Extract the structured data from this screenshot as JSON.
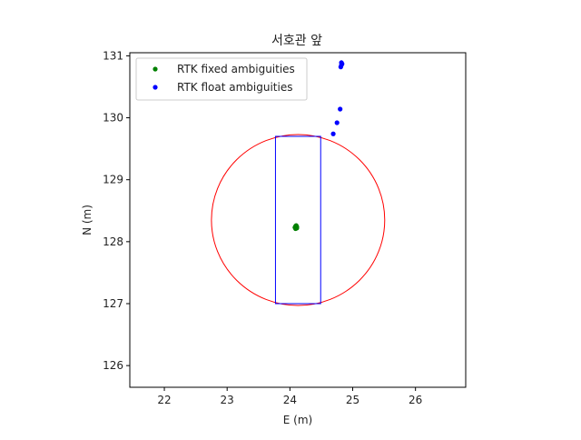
{
  "chart_data": {
    "type": "scatter",
    "title": "서호관 앞",
    "xlabel": "E (m)",
    "ylabel": "N (m)",
    "xlim": [
      21.45,
      26.8
    ],
    "ylim": [
      125.65,
      131.05
    ],
    "x_ticks": [
      22,
      23,
      24,
      25,
      26
    ],
    "y_ticks": [
      126,
      127,
      128,
      129,
      130,
      131
    ],
    "grid": false,
    "legend_position": "upper-left",
    "series": [
      {
        "name": "RTK fixed ambiguities",
        "color": "#008000",
        "points": [
          [
            24.09,
            128.25
          ],
          [
            24.1,
            128.22
          ],
          [
            24.11,
            128.24
          ],
          [
            24.08,
            128.23
          ],
          [
            24.1,
            128.26
          ],
          [
            24.09,
            128.21
          ],
          [
            24.11,
            128.22
          ],
          [
            24.1,
            128.24
          ]
        ]
      },
      {
        "name": "RTK float ambiguities",
        "color": "#0000ff",
        "points": [
          [
            24.82,
            130.89
          ],
          [
            24.83,
            130.87
          ],
          [
            24.82,
            130.85
          ],
          [
            24.81,
            130.82
          ],
          [
            24.8,
            130.14
          ],
          [
            24.75,
            129.92
          ],
          [
            24.69,
            129.74
          ]
        ]
      }
    ],
    "shapes": {
      "circle": {
        "center": [
          24.13,
          128.35
        ],
        "radius": 1.38,
        "color": "#ff0000"
      },
      "rectangle": {
        "x": [
          23.77,
          24.49
        ],
        "y": [
          127.0,
          129.7
        ],
        "color": "#0000ff"
      }
    }
  }
}
